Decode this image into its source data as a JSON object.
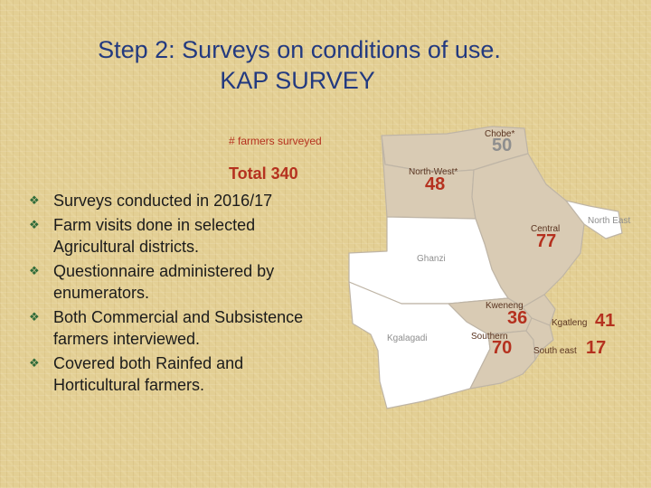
{
  "title": {
    "line1": "Step 2: Surveys on conditions of use.",
    "line2": "KAP SURVEY"
  },
  "bullets": [
    "Surveys conducted in 2016/17",
    "Farm visits done in selected Agricultural districts.",
    "Questionnaire administered by enumerators.",
    "Both Commercial and Subsistence farmers interviewed.",
    "Covered both Rainfed and Horticultural farmers."
  ],
  "bullet_icon": "diamond-bullet-icon",
  "map": {
    "legend_label": "# farmers surveyed",
    "total_label": "Total 340",
    "districts": {
      "chobe": {
        "name": "Chobe*",
        "count": "50"
      },
      "north_west": {
        "name": "North-West*",
        "count": "48"
      },
      "north_east": {
        "name": "North East"
      },
      "central": {
        "name": "Central",
        "count": "77"
      },
      "ghanzi": {
        "name": "Ghanzi"
      },
      "kgalagadi": {
        "name": "Kgalagadi"
      },
      "kweneng": {
        "name": "Kweneng",
        "count": "36"
      },
      "kgatleng": {
        "name": "Kgatleng",
        "count": "41"
      },
      "southern": {
        "name": "Southern",
        "count": "70"
      },
      "south_east": {
        "name": "South east",
        "count": "17"
      }
    }
  },
  "colors": {
    "title": "#233a80",
    "number": "#b5311f",
    "surveyed_region": "#d9cbb4",
    "unsurveyed_region": "#ffffff",
    "border": "#bfb5a6"
  }
}
